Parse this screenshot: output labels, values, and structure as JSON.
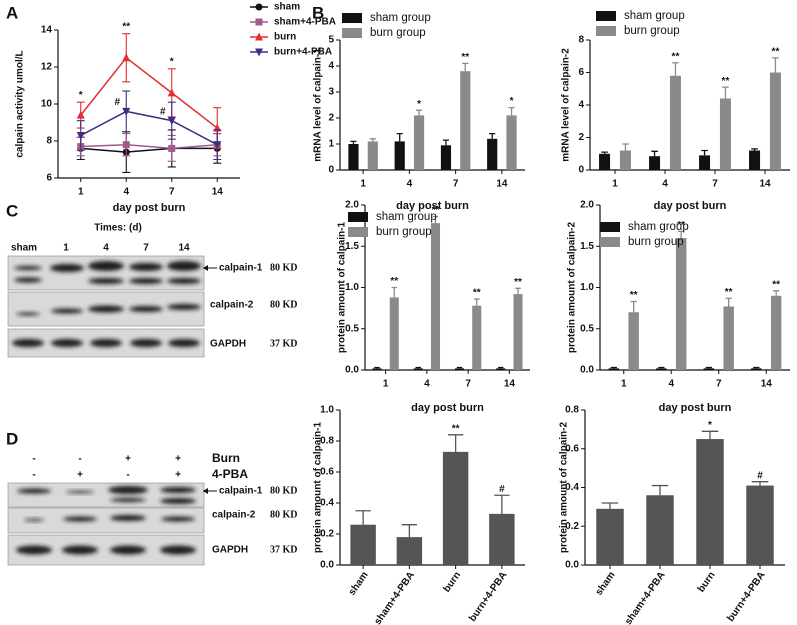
{
  "figure": {
    "panels": [
      "A",
      "B",
      "C",
      "D"
    ]
  },
  "blots": {
    "C": {
      "header": "Times: (d)",
      "lanes": [
        "sham",
        "1",
        "4",
        "7",
        "14"
      ],
      "rows": [
        "calpain-1",
        "calpain-2",
        "GAPDH"
      ],
      "sizes": [
        "80 KD",
        "80 KD",
        "37 KD"
      ]
    },
    "D": {
      "conditions": [
        {
          "name": "Burn",
          "signs": [
            "-",
            "-",
            "+",
            "+"
          ]
        },
        {
          "name": "4-PBA",
          "signs": [
            "-",
            "+",
            "-",
            "+"
          ]
        }
      ],
      "rows": [
        "calpain-1",
        "calpain-2",
        "GAPDH"
      ],
      "sizes": [
        "80 KD",
        "80 KD",
        "37 KD"
      ]
    }
  },
  "chart_data": [
    {
      "type": "line",
      "x_label": "day post burn",
      "y_label": "calpain activity umol/L",
      "categories": [
        "1",
        "4",
        "7",
        "14"
      ],
      "ylim": [
        6,
        14
      ],
      "yticks": [
        6,
        8,
        10,
        12,
        14
      ],
      "series": [
        {
          "name": "sham",
          "color": "#111111",
          "marker": "circle",
          "values": [
            7.6,
            7.4,
            7.6,
            7.6
          ],
          "errors": [
            0.6,
            1.1,
            1.0,
            0.8
          ]
        },
        {
          "name": "sham+4-PBA",
          "color": "#a05a8c",
          "marker": "square",
          "values": [
            7.7,
            7.8,
            7.6,
            7.8
          ],
          "errors": [
            0.5,
            0.6,
            0.7,
            0.6
          ]
        },
        {
          "name": "burn",
          "color": "#e03030",
          "marker": "triangle",
          "values": [
            9.4,
            12.5,
            10.6,
            8.7
          ],
          "errors": [
            0.7,
            1.3,
            1.3,
            1.1
          ],
          "significance": [
            "*",
            "**",
            "*",
            null
          ]
        },
        {
          "name": "burn+4-PBA",
          "color": "#3a3080",
          "marker": "triangle-down",
          "values": [
            8.3,
            9.6,
            9.1,
            7.8
          ],
          "errors": [
            0.8,
            1.1,
            1.0,
            0.8
          ],
          "significance": [
            null,
            "#",
            "#",
            null
          ]
        }
      ]
    },
    {
      "type": "bar",
      "x_label": "day post burn",
      "y_label": "mRNA level of calpain-1",
      "categories": [
        "1",
        "4",
        "7",
        "14"
      ],
      "ylim": [
        0,
        5
      ],
      "yticks": [
        0,
        1,
        2,
        3,
        4,
        5
      ],
      "series": [
        {
          "name": "sham group",
          "color": "#111111",
          "values": [
            1.0,
            1.1,
            0.95,
            1.2
          ],
          "errors": [
            0.1,
            0.3,
            0.2,
            0.2
          ]
        },
        {
          "name": "burn group",
          "color": "#8a8a8a",
          "values": [
            1.1,
            2.1,
            3.8,
            2.1
          ],
          "errors": [
            0.1,
            0.2,
            0.3,
            0.3
          ],
          "significance": [
            null,
            "*",
            "**",
            "*"
          ]
        }
      ]
    },
    {
      "type": "bar",
      "x_label": "day post burn",
      "y_label": "mRNA level of calpain-2",
      "categories": [
        "1",
        "4",
        "7",
        "14"
      ],
      "ylim": [
        0,
        8
      ],
      "yticks": [
        0,
        2,
        4,
        6,
        8
      ],
      "series": [
        {
          "name": "sham group",
          "color": "#111111",
          "values": [
            1.0,
            0.85,
            0.9,
            1.2
          ],
          "errors": [
            0.1,
            0.3,
            0.3,
            0.1
          ]
        },
        {
          "name": "burn group",
          "color": "#8a8a8a",
          "values": [
            1.2,
            5.8,
            4.4,
            6.0
          ],
          "errors": [
            0.4,
            0.8,
            0.7,
            0.9
          ],
          "significance": [
            null,
            "**",
            "**",
            "**"
          ]
        }
      ]
    },
    {
      "type": "bar",
      "x_label": "day post burn",
      "y_label": "protein amount of calpain-1",
      "categories": [
        "1",
        "4",
        "7",
        "14"
      ],
      "ylim": [
        0,
        2
      ],
      "yticks": [
        {
          "value": 0,
          "label": "0.0"
        },
        {
          "value": 0.5,
          "label": "0.5"
        },
        {
          "value": 1,
          "label": "1.0"
        },
        {
          "value": 1.5,
          "label": "1.5"
        },
        {
          "value": 2,
          "label": "2.0"
        }
      ],
      "series": [
        {
          "name": "sham group",
          "color": "#111111",
          "values": [
            0.02,
            0.02,
            0.02,
            0.02
          ],
          "errors": [
            0.01,
            0.01,
            0.01,
            0.01
          ]
        },
        {
          "name": "burn group",
          "color": "#8a8a8a",
          "values": [
            0.88,
            1.78,
            0.78,
            0.92
          ],
          "errors": [
            0.12,
            0.08,
            0.08,
            0.07
          ],
          "significance": [
            "**",
            "**",
            "**",
            "**"
          ]
        }
      ]
    },
    {
      "type": "bar",
      "x_label": "day post burn",
      "y_label": "protein amount of calpain-2",
      "categories": [
        "1",
        "4",
        "7",
        "14"
      ],
      "ylim": [
        0,
        2
      ],
      "yticks": [
        {
          "value": 0,
          "label": "0.0"
        },
        {
          "value": 0.5,
          "label": "0.5"
        },
        {
          "value": 1,
          "label": "1.0"
        },
        {
          "value": 1.5,
          "label": "1.5"
        },
        {
          "value": 2,
          "label": "2.0"
        }
      ],
      "series": [
        {
          "name": "sham group",
          "color": "#111111",
          "values": [
            0.02,
            0.02,
            0.02,
            0.02
          ],
          "errors": [
            0.01,
            0.01,
            0.01,
            0.01
          ]
        },
        {
          "name": "burn group",
          "color": "#8a8a8a",
          "values": [
            0.7,
            1.6,
            0.77,
            0.9
          ],
          "errors": [
            0.13,
            0.08,
            0.1,
            0.06
          ],
          "significance": [
            "**",
            "**",
            "**",
            "**"
          ]
        }
      ]
    },
    {
      "type": "bar",
      "y_label": "protein amount of calpain-1",
      "categories": [
        "sham",
        "sham+4-PBA",
        "burn",
        "burn+4-PBA"
      ],
      "ylim": [
        0,
        1
      ],
      "yticks": [
        {
          "value": 0,
          "label": "0.0"
        },
        {
          "value": 0.2,
          "label": "0.2"
        },
        {
          "value": 0.4,
          "label": "0.4"
        },
        {
          "value": 0.6,
          "label": "0.6"
        },
        {
          "value": 0.8,
          "label": "0.8"
        },
        {
          "value": 1,
          "label": "1.0"
        }
      ],
      "color": "#555555",
      "values": [
        0.26,
        0.18,
        0.73,
        0.33
      ],
      "errors": [
        0.09,
        0.08,
        0.11,
        0.12
      ],
      "significance": [
        null,
        null,
        "**",
        "#"
      ]
    },
    {
      "type": "bar",
      "y_label": "protein amount of calpain-2",
      "categories": [
        "sham",
        "sham+4-PBA",
        "burn",
        "burn+4-PBA"
      ],
      "ylim": [
        0,
        0.8
      ],
      "yticks": [
        {
          "value": 0,
          "label": "0.0"
        },
        {
          "value": 0.2,
          "label": "0.2"
        },
        {
          "value": 0.4,
          "label": "0.4"
        },
        {
          "value": 0.6,
          "label": "0.6"
        },
        {
          "value": 0.8,
          "label": "0.8"
        }
      ],
      "color": "#555555",
      "values": [
        0.29,
        0.36,
        0.65,
        0.41
      ],
      "errors": [
        0.03,
        0.05,
        0.04,
        0.02
      ],
      "significance": [
        null,
        null,
        "*",
        "#"
      ]
    }
  ]
}
